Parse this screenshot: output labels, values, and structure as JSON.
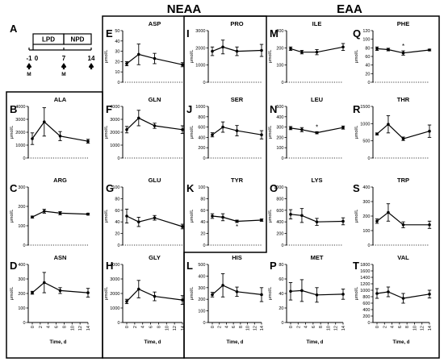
{
  "groups": {
    "neaa": "NEAA",
    "eaa": "EAA"
  },
  "timeline": {
    "label": "A",
    "phases": [
      "LPD",
      "NPD"
    ],
    "ticks": [
      "-1",
      "0",
      "7",
      "14"
    ],
    "marker_label": "M"
  },
  "shared": {
    "ylabel": "μmol/L",
    "xlabel": "Time, d",
    "x_ticks": [
      "0",
      "2",
      "4",
      "6",
      "8",
      "10",
      "12",
      "14"
    ]
  },
  "chart_data": [
    {
      "type": "line",
      "panel": "B",
      "title": "ALA",
      "ylim": [
        0,
        4000
      ],
      "y_ticks": [
        0,
        1000,
        2000,
        3000,
        4000
      ],
      "x": [
        0,
        3,
        7,
        14
      ],
      "values": [
        1500,
        2800,
        1700,
        1300
      ],
      "errors": [
        450,
        1100,
        350,
        150
      ],
      "stars": []
    },
    {
      "type": "line",
      "panel": "C",
      "title": "ARG",
      "ylim": [
        0,
        300
      ],
      "y_ticks": [
        0,
        100,
        200,
        300
      ],
      "x": [
        0,
        3,
        7,
        14
      ],
      "values": [
        145,
        175,
        165,
        160
      ],
      "errors": [
        5,
        10,
        8,
        5
      ],
      "stars": []
    },
    {
      "type": "line",
      "panel": "D",
      "title": "ASN",
      "ylim": [
        0,
        400
      ],
      "y_ticks": [
        0,
        100,
        200,
        300,
        400
      ],
      "x": [
        0,
        3,
        7,
        14
      ],
      "values": [
        205,
        275,
        220,
        205
      ],
      "errors": [
        10,
        70,
        20,
        30
      ],
      "stars": []
    },
    {
      "type": "line",
      "panel": "E",
      "title": "ASP",
      "ylim": [
        0,
        50
      ],
      "y_ticks": [
        0,
        10,
        20,
        30,
        40,
        50
      ],
      "x": [
        0,
        3,
        7,
        14
      ],
      "values": [
        18,
        27,
        23,
        17
      ],
      "errors": [
        2,
        10,
        5,
        2
      ],
      "stars": []
    },
    {
      "type": "line",
      "panel": "F",
      "title": "GLN",
      "ylim": [
        0,
        4000
      ],
      "y_ticks": [
        0,
        1000,
        2000,
        3000,
        4000
      ],
      "x": [
        0,
        3,
        7,
        14
      ],
      "values": [
        2200,
        3100,
        2500,
        2200
      ],
      "errors": [
        250,
        600,
        200,
        300
      ],
      "stars": []
    },
    {
      "type": "line",
      "panel": "G",
      "title": "GLU",
      "ylim": [
        0,
        100
      ],
      "y_ticks": [
        0,
        20,
        40,
        60,
        80,
        100
      ],
      "x": [
        0,
        3,
        7,
        14
      ],
      "values": [
        50,
        40,
        47,
        32
      ],
      "errors": [
        12,
        8,
        4,
        4
      ],
      "stars": []
    },
    {
      "type": "line",
      "panel": "H",
      "title": "GLY",
      "ylim": [
        0,
        4000
      ],
      "y_ticks": [
        0,
        1000,
        2000,
        3000,
        4000
      ],
      "x": [
        0,
        3,
        7,
        14
      ],
      "values": [
        1450,
        2300,
        1800,
        1550
      ],
      "errors": [
        150,
        600,
        300,
        300
      ],
      "stars": []
    },
    {
      "type": "line",
      "panel": "I",
      "title": "PRO",
      "ylim": [
        0,
        3000
      ],
      "y_ticks": [
        0,
        1000,
        2000,
        3000
      ],
      "x": [
        0,
        3,
        7,
        14
      ],
      "values": [
        1800,
        2050,
        1800,
        1850
      ],
      "errors": [
        250,
        400,
        250,
        350
      ],
      "stars": []
    },
    {
      "type": "line",
      "panel": "J",
      "title": "SER",
      "ylim": [
        0,
        1000
      ],
      "y_ticks": [
        0,
        200,
        400,
        600,
        800,
        1000
      ],
      "x": [
        0,
        3,
        7,
        14
      ],
      "values": [
        450,
        600,
        530,
        450
      ],
      "errors": [
        40,
        100,
        100,
        80
      ],
      "stars": []
    },
    {
      "type": "line",
      "panel": "K",
      "title": "TYR",
      "ylim": [
        0,
        100
      ],
      "y_ticks": [
        0,
        20,
        40,
        60,
        80,
        100
      ],
      "x": [
        0,
        3,
        7,
        14
      ],
      "values": [
        50,
        48,
        41,
        43
      ],
      "errors": [
        4,
        6,
        2,
        2
      ],
      "stars": [
        7
      ]
    },
    {
      "type": "line",
      "panel": "L",
      "title": "HIS",
      "ylim": [
        0,
        500
      ],
      "y_ticks": [
        0,
        100,
        200,
        300,
        400,
        500
      ],
      "x": [
        0,
        3,
        7,
        14
      ],
      "values": [
        240,
        320,
        265,
        240
      ],
      "errors": [
        20,
        100,
        40,
        60
      ],
      "stars": []
    },
    {
      "type": "line",
      "panel": "M",
      "title": "ILE",
      "ylim": [
        0,
        300
      ],
      "y_ticks": [
        0,
        100,
        200,
        300
      ],
      "x": [
        0,
        3,
        7,
        14
      ],
      "values": [
        195,
        175,
        175,
        205
      ],
      "errors": [
        10,
        10,
        15,
        20
      ],
      "stars": []
    },
    {
      "type": "line",
      "panel": "N",
      "title": "LEU",
      "ylim": [
        0,
        500
      ],
      "y_ticks": [
        0,
        100,
        200,
        300,
        400,
        500
      ],
      "x": [
        0,
        3,
        7,
        14
      ],
      "values": [
        290,
        275,
        245,
        295
      ],
      "errors": [
        15,
        20,
        10,
        15
      ],
      "stars": [
        7
      ]
    },
    {
      "type": "line",
      "panel": "O",
      "title": "LYS",
      "ylim": [
        0,
        1000
      ],
      "y_ticks": [
        0,
        200,
        400,
        600,
        800,
        1000
      ],
      "x": [
        0,
        3,
        7,
        14
      ],
      "values": [
        530,
        510,
        400,
        410
      ],
      "errors": [
        80,
        120,
        60,
        60
      ],
      "stars": []
    },
    {
      "type": "line",
      "panel": "P",
      "title": "MET",
      "ylim": [
        0,
        80
      ],
      "y_ticks": [
        0,
        20,
        40,
        60,
        80
      ],
      "x": [
        0,
        3,
        7,
        14
      ],
      "values": [
        43,
        44,
        38,
        39
      ],
      "errors": [
        12,
        15,
        10,
        7
      ],
      "stars": []
    },
    {
      "type": "line",
      "panel": "Q",
      "title": "PHE",
      "ylim": [
        0,
        120
      ],
      "y_ticks": [
        0,
        20,
        40,
        60,
        80,
        100,
        120
      ],
      "x": [
        0,
        3,
        7,
        14
      ],
      "values": [
        78,
        76,
        68,
        75
      ],
      "errors": [
        4,
        3,
        5,
        2
      ],
      "stars": [
        7
      ]
    },
    {
      "type": "line",
      "panel": "R",
      "title": "THR",
      "ylim": [
        0,
        1500
      ],
      "y_ticks": [
        0,
        500,
        1000,
        1500
      ],
      "x": [
        0,
        3,
        7,
        14
      ],
      "values": [
        700,
        980,
        560,
        780
      ],
      "errors": [
        30,
        250,
        50,
        180
      ],
      "stars": []
    },
    {
      "type": "line",
      "panel": "S",
      "title": "TRP",
      "ylim": [
        0,
        400
      ],
      "y_ticks": [
        0,
        100,
        200,
        300,
        400
      ],
      "x": [
        0,
        3,
        7,
        14
      ],
      "values": [
        165,
        225,
        140,
        140
      ],
      "errors": [
        15,
        60,
        20,
        25
      ],
      "stars": []
    },
    {
      "type": "line",
      "panel": "T",
      "title": "VAL",
      "ylim": [
        0,
        1800
      ],
      "y_ticks": [
        0,
        200,
        400,
        600,
        800,
        1000,
        1200,
        1400,
        1600,
        1800
      ],
      "x": [
        0,
        3,
        7,
        14
      ],
      "values": [
        900,
        950,
        750,
        880
      ],
      "errors": [
        150,
        150,
        150,
        120
      ],
      "stars": []
    }
  ]
}
